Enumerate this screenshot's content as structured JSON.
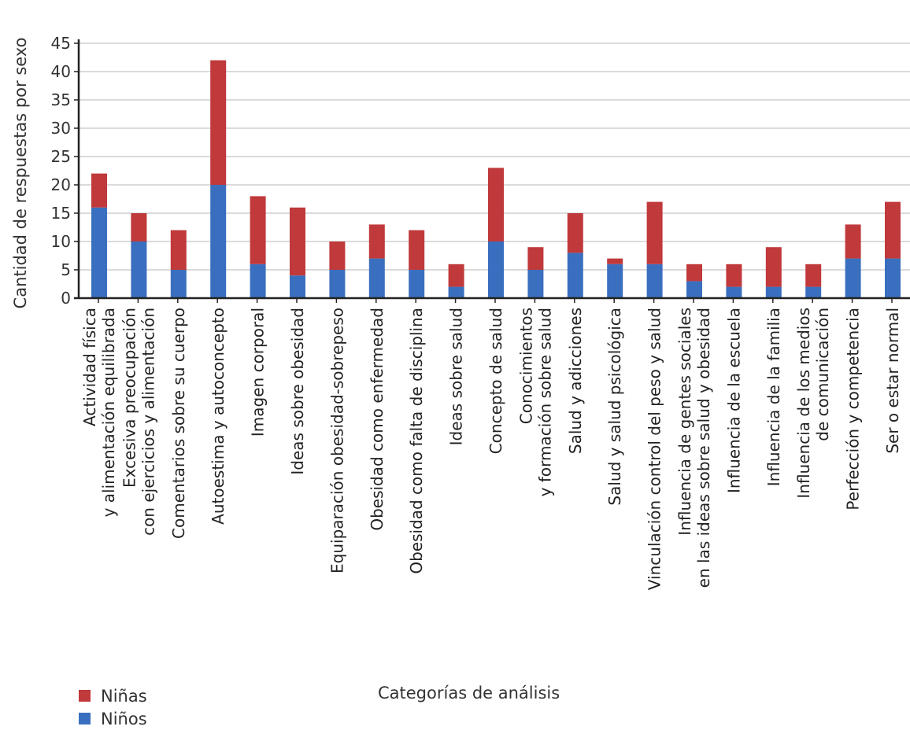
{
  "chart_data": {
    "type": "bar",
    "stacked": true,
    "xlabel": "Categorías de análisis",
    "ylabel": "Cantidad de respuestas por sexo",
    "ylim": [
      0,
      45
    ],
    "yticks": [
      0,
      5,
      10,
      15,
      20,
      25,
      30,
      35,
      40,
      45
    ],
    "grid": true,
    "legend_position": "bottom-left",
    "categories": [
      [
        "Actividad física",
        "y alimentación equilibrada"
      ],
      [
        "Excesiva preocupación",
        "con ejercicios y alimentación"
      ],
      [
        "Comentarios sobre su cuerpo"
      ],
      [
        "Autoestima y autoconcepto"
      ],
      [
        "Imagen corporal"
      ],
      [
        "Ideas sobre obesidad"
      ],
      [
        "Equiparación obesidad-sobrepeso"
      ],
      [
        "Obesidad como enfermedad"
      ],
      [
        "Obesidad como falta de disciplina"
      ],
      [
        "Ideas sobre salud"
      ],
      [
        "Concepto de salud"
      ],
      [
        "Conocimientos",
        "y formación sobre salud"
      ],
      [
        "Salud y adicciones"
      ],
      [
        "Salud y salud psicológica"
      ],
      [
        "Vinculación control del peso y salud"
      ],
      [
        "Influencia de gentes sociales",
        "en las ideas sobre salud y obesidad"
      ],
      [
        "Influencia de la escuela"
      ],
      [
        "Influencia de la familia"
      ],
      [
        "Influencia de los medios",
        "de comunicación"
      ],
      [
        "Perfección y competencia"
      ],
      [
        "Ser o estar normal"
      ]
    ],
    "series": [
      {
        "name": "Niños",
        "color": "#3a6fbf",
        "values": [
          16,
          10,
          5,
          20,
          6,
          4,
          5,
          7,
          5,
          2,
          10,
          5,
          8,
          6,
          6,
          3,
          2,
          2,
          2,
          7,
          7
        ]
      },
      {
        "name": "Niñas",
        "color": "#c0393b",
        "values": [
          6,
          5,
          7,
          22,
          12,
          12,
          5,
          6,
          7,
          4,
          13,
          4,
          7,
          1,
          11,
          3,
          4,
          7,
          4,
          6,
          10
        ]
      }
    ],
    "legend_order": [
      "Niñas",
      "Niños"
    ]
  }
}
